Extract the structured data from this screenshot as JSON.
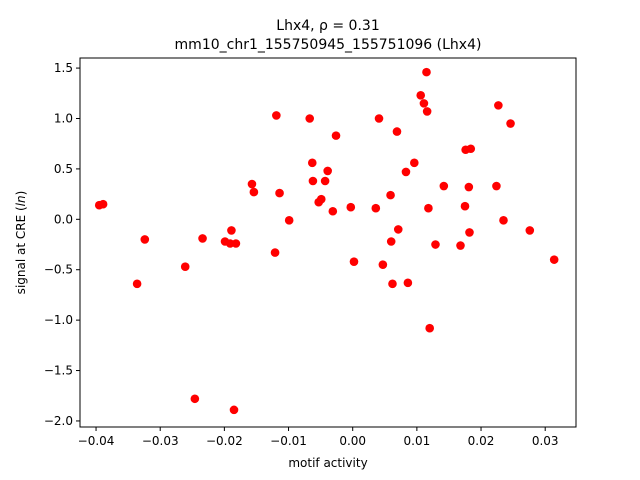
{
  "chart_data": {
    "type": "scatter",
    "title_line1": "Lhx4, ρ = 0.31",
    "title_line2": "mm10_chr1_155750945_155751096 (Lhx4)",
    "xlabel": "motif activity",
    "ylabel": "signal at CRE (",
    "ylabel_italic": "ln",
    "ylabel_end": ")",
    "xlim": [
      -0.0425,
      0.0348
    ],
    "ylim": [
      -2.06,
      1.6
    ],
    "xticks": [
      -0.04,
      -0.03,
      -0.02,
      -0.01,
      0.0,
      0.01,
      0.02,
      0.03
    ],
    "xtick_labels": [
      "−0.04",
      "−0.03",
      "−0.02",
      "−0.01",
      "0.00",
      "0.01",
      "0.02",
      "0.03"
    ],
    "yticks": [
      -2.0,
      -1.5,
      -1.0,
      -0.5,
      0.0,
      0.5,
      1.0,
      1.5
    ],
    "ytick_labels": [
      "−2.0",
      "−1.5",
      "−1.0",
      "−0.5",
      "0.0",
      "0.5",
      "1.0",
      "1.5"
    ],
    "grid": false,
    "marker_color": "#ff0000",
    "points": [
      [
        -0.0395,
        0.14
      ],
      [
        -0.0389,
        0.15
      ],
      [
        -0.0336,
        -0.64
      ],
      [
        -0.0324,
        -0.2
      ],
      [
        -0.0261,
        -0.47
      ],
      [
        -0.0246,
        -1.78
      ],
      [
        -0.0234,
        -0.19
      ],
      [
        -0.0199,
        -0.22
      ],
      [
        -0.0191,
        -0.24
      ],
      [
        -0.0189,
        -0.11
      ],
      [
        -0.0185,
        -1.89
      ],
      [
        -0.0182,
        -0.24
      ],
      [
        -0.0157,
        0.35
      ],
      [
        -0.0154,
        0.27
      ],
      [
        -0.0121,
        -0.33
      ],
      [
        -0.0119,
        1.03
      ],
      [
        -0.0114,
        0.26
      ],
      [
        -0.0099,
        -0.01
      ],
      [
        -0.0067,
        1.0
      ],
      [
        -0.0063,
        0.56
      ],
      [
        -0.0062,
        0.38
      ],
      [
        -0.0053,
        0.17
      ],
      [
        -0.0049,
        0.2
      ],
      [
        -0.0043,
        0.38
      ],
      [
        -0.0039,
        0.48
      ],
      [
        -0.0031,
        0.08
      ],
      [
        -0.0026,
        0.83
      ],
      [
        -0.0003,
        0.12
      ],
      [
        0.0002,
        -0.42
      ],
      [
        0.0036,
        0.11
      ],
      [
        0.0041,
        1.0
      ],
      [
        0.0047,
        -0.45
      ],
      [
        0.0059,
        0.24
      ],
      [
        0.006,
        -0.22
      ],
      [
        0.0062,
        -0.64
      ],
      [
        0.0069,
        0.87
      ],
      [
        0.0071,
        -0.1
      ],
      [
        0.0083,
        0.47
      ],
      [
        0.0086,
        -0.63
      ],
      [
        0.0096,
        0.56
      ],
      [
        0.0106,
        1.23
      ],
      [
        0.0111,
        1.15
      ],
      [
        0.0115,
        1.46
      ],
      [
        0.0116,
        1.07
      ],
      [
        0.0118,
        0.11
      ],
      [
        0.012,
        -1.08
      ],
      [
        0.0129,
        -0.25
      ],
      [
        0.0142,
        0.33
      ],
      [
        0.0168,
        -0.26
      ],
      [
        0.0175,
        0.13
      ],
      [
        0.0176,
        0.69
      ],
      [
        0.0181,
        0.32
      ],
      [
        0.0182,
        -0.13
      ],
      [
        0.0184,
        0.7
      ],
      [
        0.0224,
        0.33
      ],
      [
        0.0227,
        1.13
      ],
      [
        0.0235,
        -0.01
      ],
      [
        0.0246,
        0.95
      ],
      [
        0.0276,
        -0.11
      ],
      [
        0.0314,
        -0.4
      ]
    ]
  }
}
